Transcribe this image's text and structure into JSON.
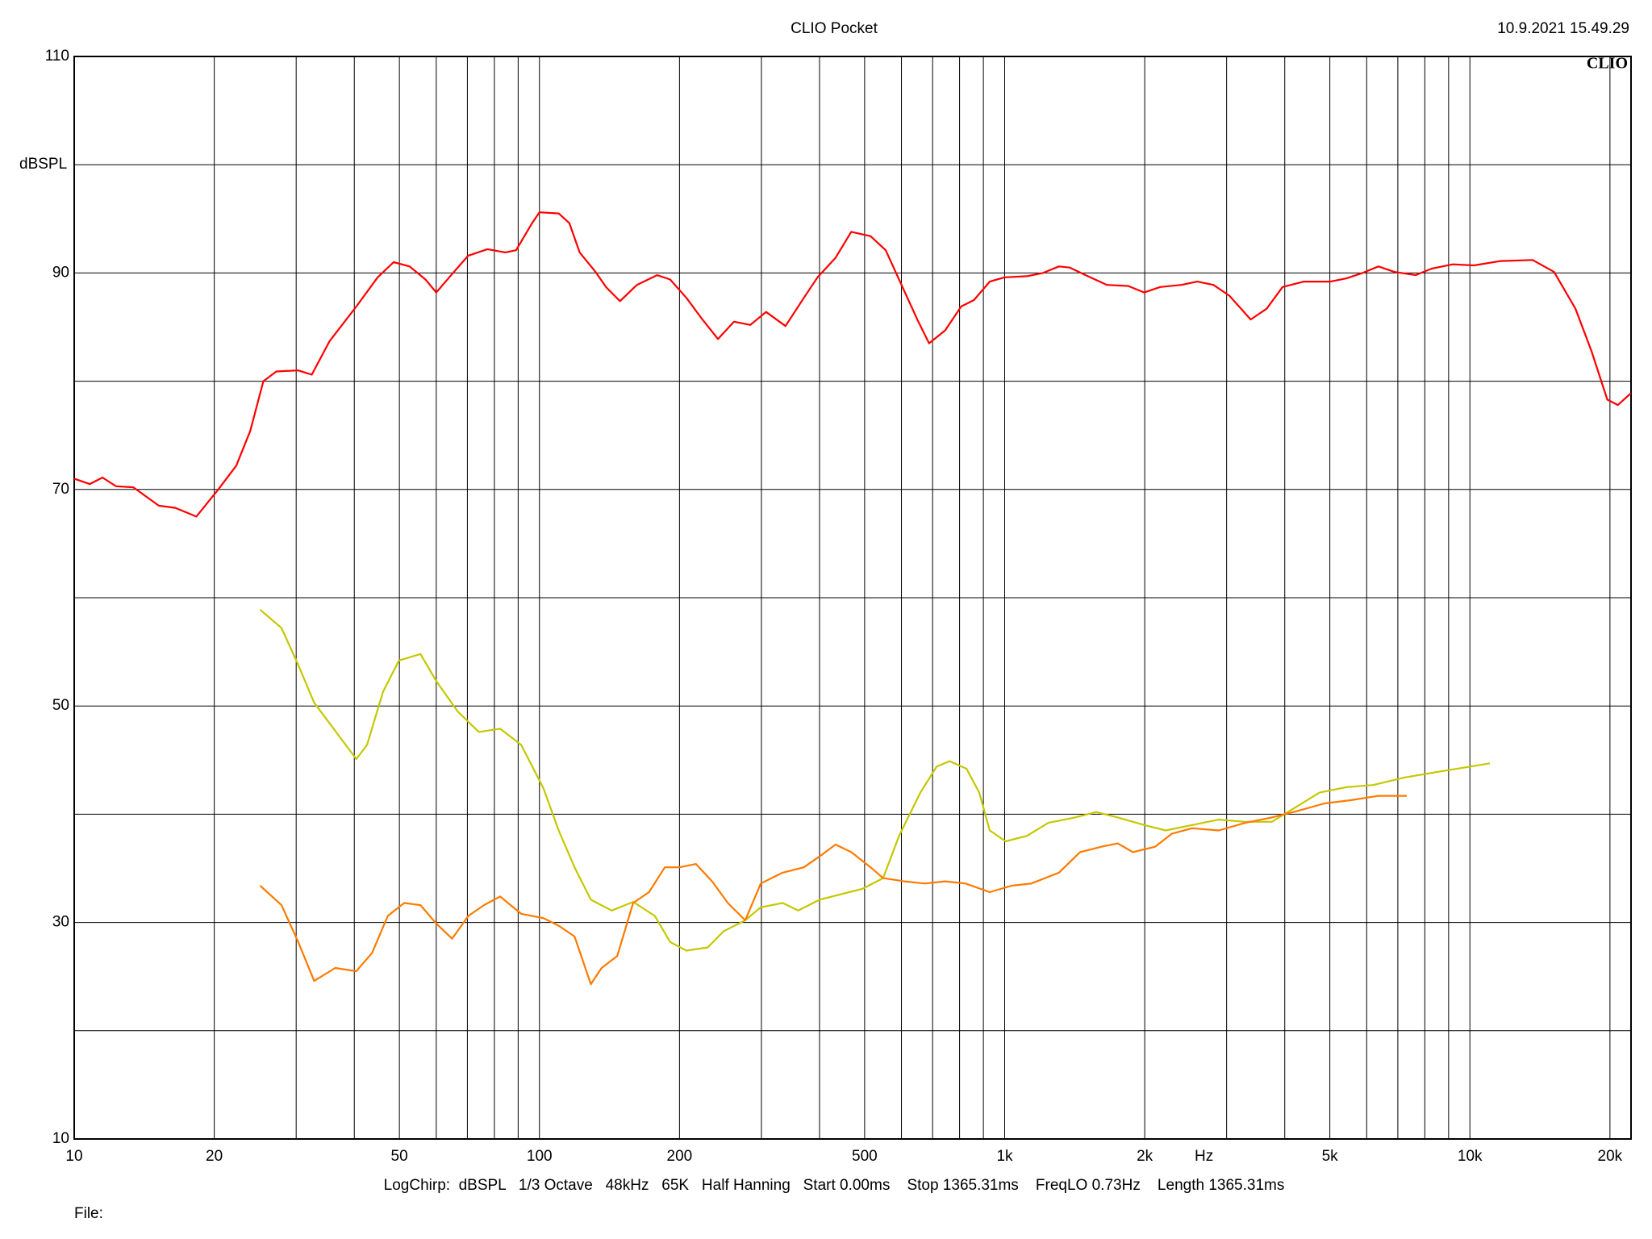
{
  "chart_data": {
    "type": "line",
    "title": "CLIO Pocket",
    "timestamp": "10.9.2021 15.49.29",
    "brand": "CLIO",
    "y_label": "dBSPL",
    "x_label": "Hz",
    "settings_line": "LogChirp:  dBSPL   1/3 Octave   48kHz   65K   Half Hanning   Start 0.00ms    Stop 1365.31ms    FreqLO 0.73Hz    Length 1365.31ms",
    "file_label": "File:",
    "x_log": true,
    "grid": true,
    "xlim": [
      10,
      22200
    ],
    "ylim": [
      10,
      110
    ],
    "xticks": [
      10,
      20,
      50,
      100,
      200,
      500,
      {
        "value": 1000,
        "label": "1k"
      },
      {
        "value": 2000,
        "label": "2k"
      },
      {
        "value": 5000,
        "label": "5k"
      },
      {
        "value": 10000,
        "label": "10k"
      },
      {
        "value": 20000,
        "label": "20k"
      }
    ],
    "minor_xticks": [
      30,
      40,
      60,
      70,
      80,
      90,
      300,
      400,
      600,
      700,
      800,
      900,
      3000,
      4000,
      6000,
      7000,
      8000,
      9000
    ],
    "yticks": [
      10,
      30,
      50,
      70,
      90,
      110
    ],
    "minor_yticks": [
      20,
      40,
      60,
      80,
      100
    ],
    "series": [
      {
        "color": "#ff0000",
        "x": [
          10,
          10.8,
          11.5,
          12.3,
          13.4,
          15.2,
          16.5,
          18.3,
          20.4,
          22.3,
          23.9,
          25.5,
          27.2,
          30.3,
          32.4,
          35.4,
          40.4,
          44.9,
          48.6,
          52.6,
          56.9,
          60,
          64.9,
          70.3,
          77.3,
          84.5,
          89.1,
          96.4,
          100,
          110,
          116,
          122,
          132,
          139,
          149,
          162,
          179,
          191,
          207,
          224,
          242,
          262,
          284,
          307,
          338,
          370,
          396,
          433,
          468,
          515,
          555,
          603,
          649,
          688,
          745,
          806,
          859,
          929,
          1000,
          1117,
          1209,
          1308,
          1380,
          1493,
          1659,
          1843,
          1995,
          2159,
          2399,
          2595,
          2810,
          3041,
          3380,
          3657,
          3957,
          4399,
          5012,
          5429,
          5878,
          6360,
          6880,
          7640,
          8277,
          9190,
          10210,
          11640,
          13640,
          15170,
          16860,
          18250,
          19740,
          20800,
          22190
        ],
        "values": [
          71.0,
          70.5,
          71.1,
          70.3,
          70.2,
          68.5,
          68.3,
          67.5,
          70.0,
          72.2,
          75.4,
          80.0,
          80.9,
          81.0,
          80.6,
          83.7,
          86.9,
          89.6,
          91.0,
          90.6,
          89.4,
          88.2,
          89.9,
          91.6,
          92.2,
          91.9,
          92.1,
          94.6,
          95.6,
          95.5,
          94.6,
          91.9,
          90.1,
          88.7,
          87.4,
          88.9,
          89.8,
          89.4,
          87.7,
          85.7,
          83.9,
          85.5,
          85.2,
          86.4,
          85.1,
          87.7,
          89.6,
          91.4,
          93.8,
          93.4,
          92.1,
          88.7,
          85.7,
          83.5,
          84.7,
          86.9,
          87.5,
          89.2,
          89.6,
          89.7,
          90.0,
          90.6,
          90.5,
          89.8,
          88.9,
          88.8,
          88.2,
          88.7,
          88.9,
          89.2,
          88.9,
          87.9,
          85.7,
          86.7,
          88.7,
          89.2,
          89.2,
          89.5,
          90.0,
          90.6,
          90.1,
          89.8,
          90.4,
          90.8,
          90.7,
          91.1,
          91.2,
          90.1,
          86.7,
          82.8,
          78.3,
          77.8,
          78.9
        ]
      },
      {
        "color": "#c4c800",
        "x": [
          25.1,
          27.9,
          30.3,
          32.8,
          36.4,
          40.4,
          42.6,
          46.1,
          49.9,
          55.5,
          60,
          66.7,
          74.1,
          82.3,
          91.4,
          102,
          110,
          119,
          129,
          143,
          159,
          177,
          191,
          207,
          230,
          249,
          277,
          299,
          333,
          360,
          400,
          444,
          494,
          548,
          593,
          659,
          714,
          761,
          828,
          882,
          929,
          1005,
          1117,
          1241,
          1416,
          1574,
          1750,
          1995,
          2218,
          2529,
          2885,
          3289,
          3750,
          4169,
          4753,
          5429,
          6194,
          7244,
          8487,
          10000,
          11040
        ],
        "values": [
          58.9,
          57.2,
          53.8,
          50.3,
          47.7,
          45.1,
          46.4,
          51.3,
          54.2,
          54.8,
          52.3,
          49.5,
          47.6,
          47.9,
          46.4,
          42.4,
          38.5,
          35.1,
          32.1,
          31.1,
          31.9,
          30.6,
          28.2,
          27.4,
          27.7,
          29.2,
          30.2,
          31.4,
          31.8,
          31.1,
          32.1,
          32.6,
          33.1,
          34.1,
          38.0,
          42.0,
          44.4,
          44.9,
          44.2,
          42.0,
          38.5,
          37.5,
          38.0,
          39.2,
          39.7,
          40.2,
          39.7,
          39.0,
          38.5,
          39.0,
          39.5,
          39.3,
          39.3,
          40.5,
          42.0,
          42.5,
          42.7,
          43.4,
          43.9,
          44.4,
          44.7
        ]
      },
      {
        "color": "#ff7a00",
        "x": [
          25.1,
          27.9,
          30.3,
          32.8,
          36.4,
          40.4,
          43.7,
          47.2,
          51.2,
          55.5,
          60,
          64.9,
          70.3,
          76,
          82.3,
          91.4,
          102,
          110,
          119,
          129,
          136,
          147,
          159,
          172,
          186,
          200,
          217,
          235,
          254,
          277,
          299,
          333,
          370,
          400,
          433,
          468,
          515,
          548,
          608,
          673,
          745,
          824,
          929,
          1035,
          1141,
          1308,
          1452,
          1614,
          1750,
          1886,
          2105,
          2287,
          2529,
          2885,
          3289,
          3750,
          4258,
          4868,
          5548,
          6360,
          7316
        ],
        "values": [
          33.4,
          31.6,
          28.2,
          24.6,
          25.8,
          25.5,
          27.2,
          30.6,
          31.8,
          31.6,
          29.9,
          28.5,
          30.6,
          31.6,
          32.4,
          30.8,
          30.4,
          29.7,
          28.7,
          24.3,
          25.8,
          26.9,
          31.8,
          32.8,
          35.1,
          35.1,
          35.4,
          33.8,
          31.8,
          30.2,
          33.6,
          34.6,
          35.1,
          36.1,
          37.2,
          36.5,
          35.1,
          34.1,
          33.8,
          33.6,
          33.8,
          33.6,
          32.8,
          33.4,
          33.6,
          34.6,
          36.5,
          37.0,
          37.3,
          36.5,
          37.0,
          38.2,
          38.7,
          38.5,
          39.2,
          39.7,
          40.3,
          41.0,
          41.3,
          41.7,
          41.7
        ]
      }
    ]
  }
}
